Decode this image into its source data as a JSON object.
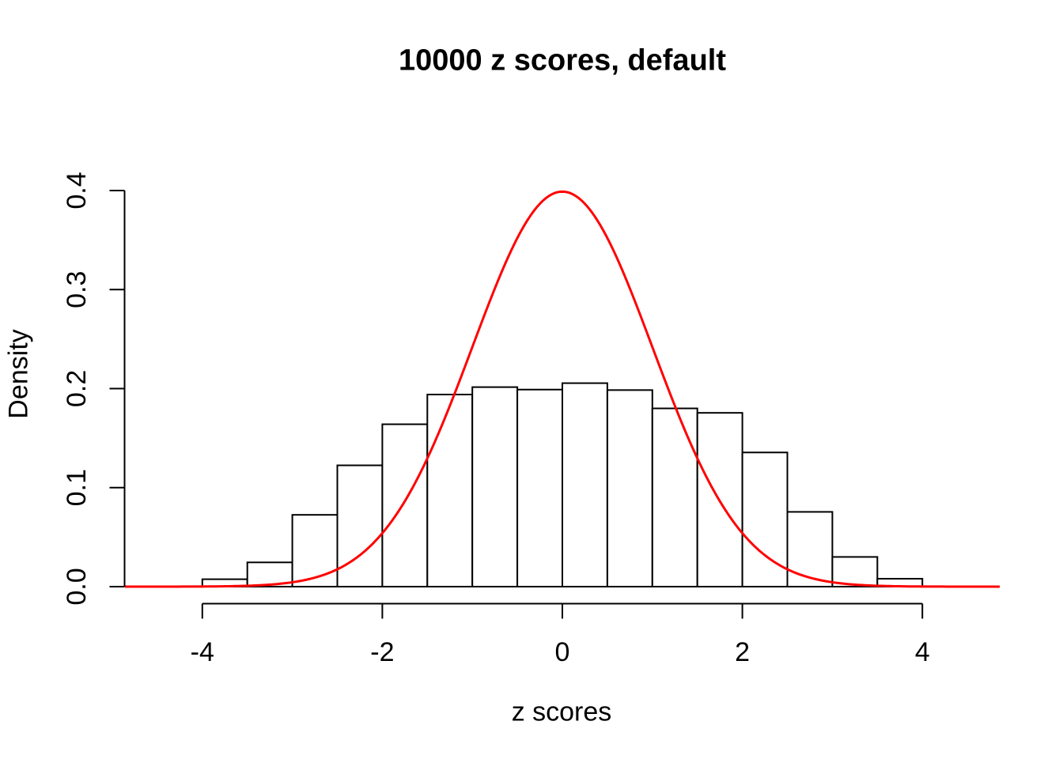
{
  "figure": {
    "background": "#ffffff",
    "foreground": "#000000"
  },
  "chart_data": {
    "type": "histogram",
    "title": "10000 z scores, default",
    "xlabel": "z scores",
    "ylabel": "Density",
    "xlim": [
      -4.86,
      4.86
    ],
    "ylim": [
      0,
      0.4
    ],
    "x_tick_values": [
      -4,
      -2,
      0,
      2,
      4
    ],
    "x_tick_labels": [
      "-4",
      "-2",
      "0",
      "2",
      "4"
    ],
    "y_tick_values": [
      0.0,
      0.1,
      0.2,
      0.3,
      0.4
    ],
    "y_tick_labels": [
      "0.0",
      "0.1",
      "0.2",
      "0.3",
      "0.4"
    ],
    "grid": false,
    "legend": false,
    "axis_color": "#000000",
    "histogram": {
      "bin_width": 0.5,
      "breaks": [
        -4.5,
        -4.0,
        -3.5,
        -3.0,
        -2.5,
        -2.0,
        -1.5,
        -1.0,
        -0.5,
        0.0,
        0.5,
        1.0,
        1.5,
        2.0,
        2.5,
        3.0,
        3.5,
        4.0,
        4.5
      ],
      "densities": [
        0,
        0.0075,
        0.0245,
        0.0725,
        0.1225,
        0.164,
        0.194,
        0.2015,
        0.199,
        0.2055,
        0.1985,
        0.18,
        0.1755,
        0.1355,
        0.0755,
        0.03,
        0.008,
        0
      ],
      "bar_fill": "#ffffff",
      "bar_stroke": "#000000"
    },
    "curve": {
      "name": "standard normal density",
      "distribution": "normal",
      "mean": 0,
      "sd": 1,
      "x_from": -4.86,
      "x_to": 4.86,
      "peak_density": 0.3989,
      "color": "#ff0000"
    }
  }
}
